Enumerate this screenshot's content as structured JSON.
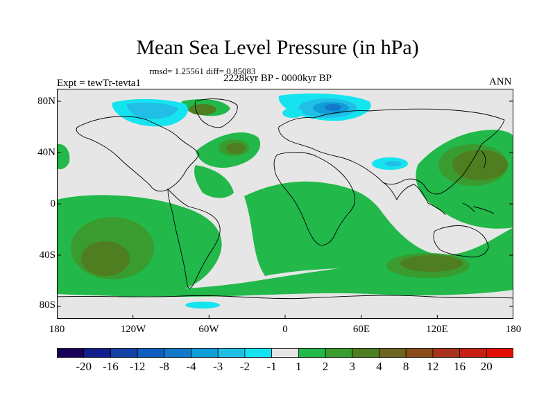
{
  "title": "Mean Sea Level Pressure (in hPa)",
  "stats": {
    "rmsd_label": "rmsd=",
    "rmsd": "1.25561",
    "diff_label": "diff=",
    "diff": "0.85083"
  },
  "subtitle": {
    "left": "Expt = tewTr-tevta1",
    "center": "2228kyr BP - 0000kyr BP",
    "right": "ANN"
  },
  "axes": {
    "y_ticks": [
      "80N",
      "40N",
      "0",
      "40S",
      "80S"
    ],
    "x_ticks": [
      "180",
      "120W",
      "60W",
      "0",
      "60E",
      "120E",
      "180"
    ]
  },
  "colorbar": {
    "labels": [
      "-20",
      "-16",
      "-12",
      "-8",
      "-4",
      "-3",
      "-2",
      "-1",
      "1",
      "2",
      "3",
      "4",
      "8",
      "12",
      "16",
      "20"
    ],
    "colors": [
      "#18005a",
      "#131e8c",
      "#1440a4",
      "#0d5ebe",
      "#1478c8",
      "#0f9ed8",
      "#21bfe6",
      "#16e3f0",
      "#e6e6e6",
      "#22b84a",
      "#3a9c2e",
      "#4f7e21",
      "#6e6424",
      "#8b4d1a",
      "#a8331a",
      "#c81f12",
      "#e00e05"
    ]
  },
  "map_colors": {
    "land": "#e6e6e6",
    "pos1": "#22b84a",
    "pos2": "#3a9c2e",
    "pos3": "#4f7e21",
    "neg1": "#16e3f0",
    "neg2": "#21bfe6",
    "neg3": "#0f9ed8",
    "neg4": "#1478c8",
    "coast": "#000000"
  }
}
